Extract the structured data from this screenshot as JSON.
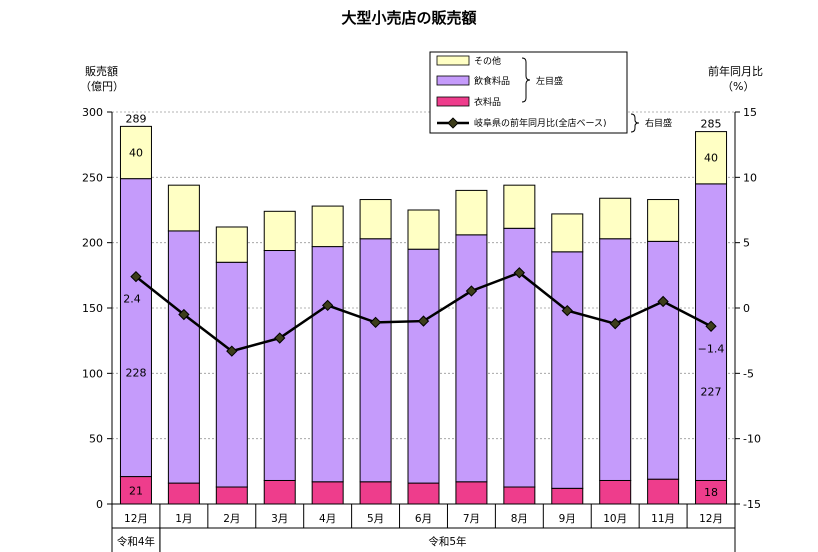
{
  "chart_data": {
    "type": "bar",
    "title": "大型小売店の販売額",
    "left_axis_title": [
      "販売額",
      "（億円）"
    ],
    "right_axis_title": [
      "前年同月比",
      "（%）"
    ],
    "categories": [
      "12月",
      "1月",
      "2月",
      "3月",
      "4月",
      "5月",
      "6月",
      "7月",
      "8月",
      "9月",
      "10月",
      "11月",
      "12月"
    ],
    "year_groups": [
      {
        "label": "令和4年",
        "start": 0,
        "end": 0
      },
      {
        "label": "令和5年",
        "start": 1,
        "end": 12
      }
    ],
    "ylim_left": [
      0,
      300
    ],
    "left_ticks": [
      0,
      50,
      100,
      150,
      200,
      250,
      300
    ],
    "ylim_right": [
      -15,
      15
    ],
    "right_ticks": [
      -15,
      -10,
      -5,
      0,
      5,
      10,
      15
    ],
    "grid": true,
    "series": [
      {
        "name": "衣料品",
        "axis": "left",
        "color": "#ee3d8c",
        "values": [
          21,
          16,
          13,
          18,
          17,
          17,
          16,
          17,
          13,
          12,
          18,
          19,
          18
        ]
      },
      {
        "name": "飲食料品",
        "axis": "left",
        "color": "#c59bfb",
        "values": [
          228,
          193,
          172,
          176,
          180,
          186,
          179,
          189,
          198,
          181,
          185,
          182,
          227
        ]
      },
      {
        "name": "その他",
        "axis": "left",
        "color": "#ffffc4",
        "values": [
          40,
          35,
          27,
          30,
          31,
          30,
          30,
          34,
          33,
          29,
          31,
          32,
          40
        ]
      },
      {
        "name": "岐阜県の前年同月比(全店ベース)",
        "axis": "right",
        "type": "line",
        "color": "#000000",
        "values": [
          2.4,
          -0.5,
          -3.3,
          -2.3,
          0.2,
          -1.1,
          -1.0,
          1.3,
          2.7,
          -0.2,
          -1.2,
          0.5,
          -1.4
        ]
      }
    ],
    "totals_labeled": {
      "0": "289",
      "12": "285"
    },
    "data_labels": [
      {
        "series": "その他",
        "index": 0,
        "text": "40"
      },
      {
        "series": "飲食料品",
        "index": 0,
        "text": "228"
      },
      {
        "series": "衣料品",
        "index": 0,
        "text": "21"
      },
      {
        "series": "その他",
        "index": 12,
        "text": "40"
      },
      {
        "series": "飲食料品",
        "index": 12,
        "text": "227"
      },
      {
        "series": "衣料品",
        "index": 12,
        "text": "18"
      },
      {
        "series": "岐阜県の前年同月比(全店ベース)",
        "index": 0,
        "text": "2.4"
      },
      {
        "series": "岐阜県の前年同月比(全店ベース)",
        "index": 12,
        "text": "−1.4"
      }
    ],
    "legend": {
      "placement": "top-center",
      "left_axis_note": "左目盛",
      "right_axis_note": "右目盛"
    }
  }
}
